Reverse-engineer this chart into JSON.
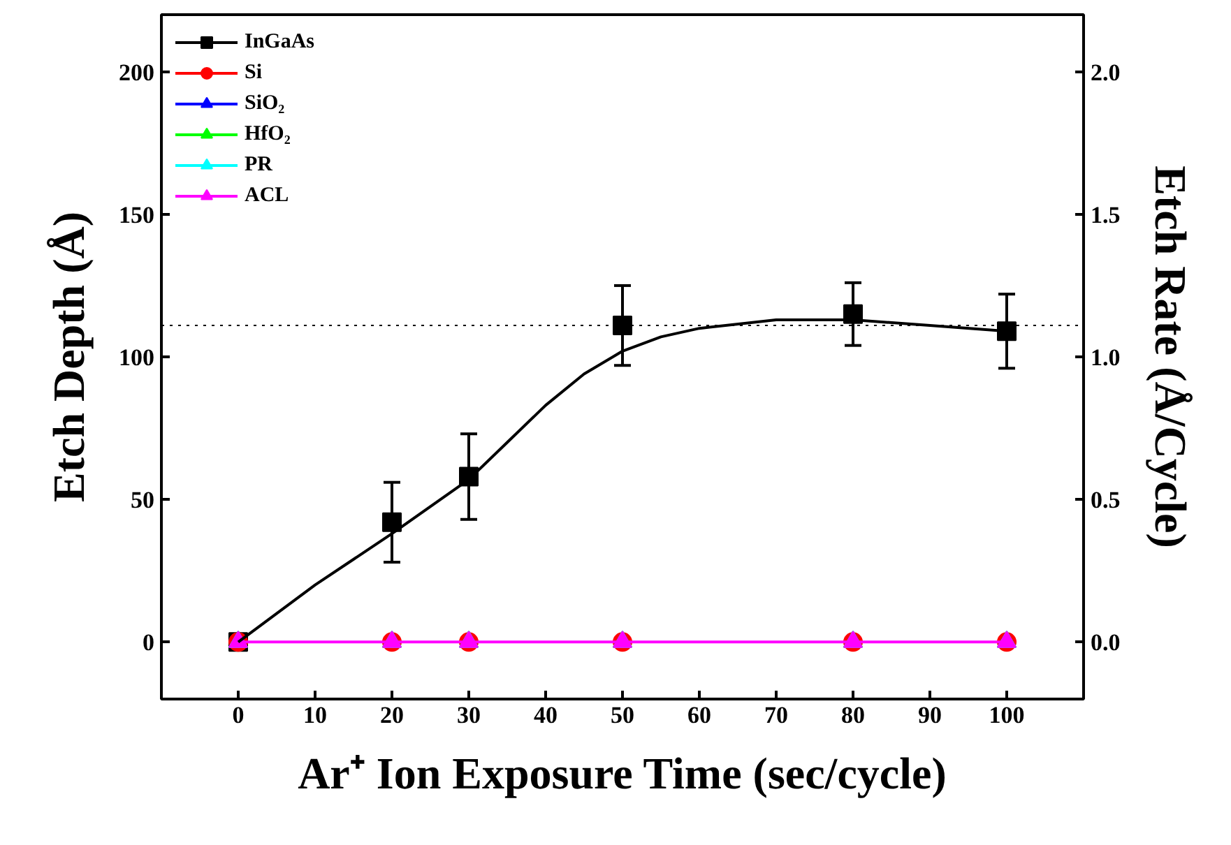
{
  "chart_data": {
    "type": "scatter",
    "xlabel": "Ar⁺ Ion Exposure Time (sec/cycle)",
    "ylabel": "Etch Depth (Å)",
    "y2label": "Etch Rate (Å/Cycle)",
    "xlim": [
      -10,
      110
    ],
    "xticks": [
      0,
      10,
      20,
      30,
      40,
      50,
      60,
      70,
      80,
      90,
      100
    ],
    "ylim": [
      -20,
      220
    ],
    "yticks": [
      0,
      50,
      100,
      150,
      200
    ],
    "y2lim": [
      -0.2,
      2.2
    ],
    "y2ticks": [
      {
        "value": 0,
        "label": "0.0"
      },
      {
        "value": 0.5,
        "label": "0.5"
      },
      {
        "value": 1,
        "label": "1.0"
      },
      {
        "value": 1.5,
        "label": "1.5"
      },
      {
        "value": 2,
        "label": "2.0"
      }
    ],
    "x": [
      0,
      20,
      30,
      50,
      80,
      100
    ],
    "series": [
      {
        "name": "InGaAs",
        "marker": "square",
        "color": "#000000",
        "values": [
          0,
          42,
          58,
          111,
          115,
          109
        ],
        "errors": [
          null,
          14,
          15,
          14,
          11,
          13
        ]
      },
      {
        "name": "Si",
        "marker": "circle",
        "color": "#ff0000",
        "values": [
          0,
          0,
          0,
          0,
          0,
          0
        ]
      },
      {
        "name": "SiO₂",
        "marker": "triangle",
        "color": "#0000ff",
        "values": [
          0,
          0,
          0,
          0,
          0,
          0
        ]
      },
      {
        "name": "HfO₂",
        "marker": "triangle",
        "color": "#00ff00",
        "values": [
          0,
          0,
          0,
          0,
          0,
          0
        ]
      },
      {
        "name": "PR",
        "marker": "triangle",
        "color": "#00ffff",
        "values": [
          0,
          0,
          0,
          0,
          0,
          0
        ]
      },
      {
        "name": "ACL",
        "type": "line",
        "marker": "triangle",
        "color": "#ff00ff",
        "values": [
          0,
          0,
          0,
          0,
          0,
          0
        ]
      },
      {
        "type": "line",
        "marker": "none",
        "color": "#000000",
        "x": [
          0,
          10,
          20,
          30,
          35,
          40,
          45,
          50,
          55,
          60,
          70,
          80,
          90,
          100
        ],
        "values": [
          0,
          20,
          38,
          57,
          70,
          83,
          94,
          102,
          107,
          110,
          113,
          113,
          111,
          109
        ]
      }
    ],
    "ref_lines": [
      {
        "axis": "y",
        "value": 111,
        "color": "#000000",
        "line_style": "dotted"
      }
    ],
    "legend": "top left",
    "grid": false
  }
}
